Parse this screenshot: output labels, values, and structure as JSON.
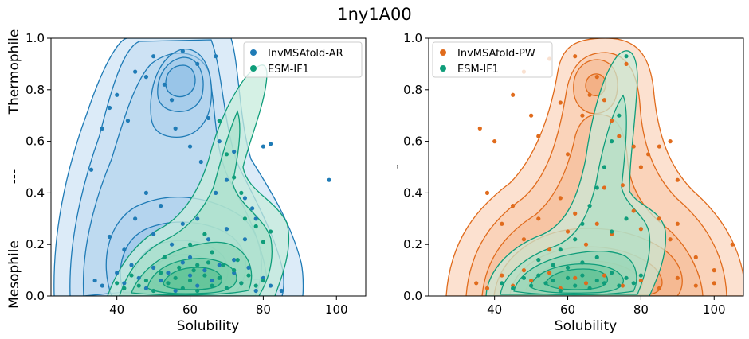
{
  "figure_title": "1ny1A00",
  "chart_data": [
    {
      "type": "scatter",
      "title": "",
      "xlabel": "Solubility",
      "ylabel_top": "Thermophile",
      "ylabel_mid": "---",
      "ylabel_bottom": "Mesophile",
      "xlim": [
        22,
        108
      ],
      "ylim": [
        0,
        1
      ],
      "xticks": [
        "40",
        "60",
        "80",
        "100"
      ],
      "yticks": [
        "0.0",
        "0.2",
        "0.4",
        "0.6",
        "0.8",
        "1.0"
      ],
      "legend_position": "top-right",
      "series": [
        {
          "name": "InvMSAfold-AR",
          "color": "#1f7bb6",
          "fill": "#cfe4f5",
          "points": [
            [
              33,
              0.49
            ],
            [
              36,
              0.65
            ],
            [
              38,
              0.73
            ],
            [
              40,
              0.78
            ],
            [
              43,
              0.68
            ],
            [
              45,
              0.87
            ],
            [
              48,
              0.85
            ],
            [
              50,
              0.93
            ],
            [
              53,
              0.82
            ],
            [
              55,
              0.76
            ],
            [
              56,
              0.65
            ],
            [
              58,
              0.95
            ],
            [
              60,
              0.58
            ],
            [
              62,
              0.9
            ],
            [
              63,
              0.52
            ],
            [
              65,
              0.69
            ],
            [
              67,
              0.93
            ],
            [
              68,
              0.6
            ],
            [
              70,
              0.45
            ],
            [
              72,
              0.56
            ],
            [
              75,
              0.38
            ],
            [
              78,
              0.3
            ],
            [
              80,
              0.58
            ],
            [
              82,
              0.59
            ],
            [
              98,
              0.45
            ],
            [
              38,
              0.23
            ],
            [
              42,
              0.18
            ],
            [
              45,
              0.3
            ],
            [
              48,
              0.4
            ],
            [
              50,
              0.24
            ],
            [
              52,
              0.35
            ],
            [
              55,
              0.2
            ],
            [
              58,
              0.28
            ],
            [
              60,
              0.15
            ],
            [
              62,
              0.3
            ],
            [
              65,
              0.22
            ],
            [
              67,
              0.4
            ],
            [
              70,
              0.26
            ],
            [
              72,
              0.14
            ],
            [
              75,
              0.22
            ],
            [
              77,
              0.34
            ],
            [
              34,
              0.06
            ],
            [
              36,
              0.04
            ],
            [
              40,
              0.09
            ],
            [
              42,
              0.05
            ],
            [
              44,
              0.12
            ],
            [
              46,
              0.07
            ],
            [
              48,
              0.03
            ],
            [
              50,
              0.11
            ],
            [
              52,
              0.06
            ],
            [
              54,
              0.09
            ],
            [
              56,
              0.02
            ],
            [
              58,
              0.13
            ],
            [
              60,
              0.08
            ],
            [
              62,
              0.04
            ],
            [
              64,
              0.1
            ],
            [
              66,
              0.06
            ],
            [
              68,
              0.12
            ],
            [
              70,
              0.03
            ],
            [
              72,
              0.09
            ],
            [
              74,
              0.05
            ],
            [
              76,
              0.11
            ],
            [
              78,
              0.02
            ],
            [
              80,
              0.07
            ],
            [
              82,
              0.04
            ],
            [
              85,
              0.02
            ]
          ]
        },
        {
          "name": "ESM-IF1",
          "color": "#0f9d7a",
          "fill": "#c7ecdc",
          "points": [
            [
              68,
              0.68
            ],
            [
              70,
              0.55
            ],
            [
              72,
              0.46
            ],
            [
              74,
              0.4
            ],
            [
              75,
              0.3
            ],
            [
              78,
              0.27
            ],
            [
              80,
              0.21
            ],
            [
              82,
              0.25
            ],
            [
              64,
              0.24
            ],
            [
              66,
              0.17
            ],
            [
              60,
              0.2
            ],
            [
              62,
              0.12
            ],
            [
              40,
              0.05
            ],
            [
              42,
              0.03
            ],
            [
              44,
              0.08
            ],
            [
              46,
              0.04
            ],
            [
              48,
              0.06
            ],
            [
              50,
              0.02
            ],
            [
              52,
              0.09
            ],
            [
              54,
              0.05
            ],
            [
              56,
              0.07
            ],
            [
              58,
              0.03
            ],
            [
              60,
              0.06
            ],
            [
              62,
              0.02
            ],
            [
              64,
              0.08
            ],
            [
              66,
              0.04
            ],
            [
              68,
              0.07
            ],
            [
              70,
              0.03
            ],
            [
              72,
              0.1
            ],
            [
              74,
              0.05
            ],
            [
              76,
              0.08
            ],
            [
              78,
              0.04
            ],
            [
              80,
              0.06
            ],
            [
              53,
              0.15
            ],
            [
              57,
              0.11
            ],
            [
              61,
              0.1
            ],
            [
              65,
              0.13
            ],
            [
              69,
              0.12
            ],
            [
              73,
              0.14
            ]
          ]
        }
      ]
    },
    {
      "type": "scatter",
      "title": "",
      "xlabel": "Solubility",
      "ylabel_mid": "---",
      "xlim": [
        22,
        108
      ],
      "ylim": [
        0,
        1
      ],
      "xticks": [
        "40",
        "60",
        "80",
        "100"
      ],
      "yticks": [
        "0.0",
        "0.2",
        "0.4",
        "0.6",
        "0.8",
        "1.0"
      ],
      "legend_position": "top-left",
      "series": [
        {
          "name": "InvMSAfold-PW",
          "color": "#e06b1c",
          "fill": "#fbdcc8",
          "points": [
            [
              36,
              0.65
            ],
            [
              40,
              0.6
            ],
            [
              45,
              0.78
            ],
            [
              48,
              0.87
            ],
            [
              50,
              0.7
            ],
            [
              52,
              0.62
            ],
            [
              55,
              0.92
            ],
            [
              58,
              0.75
            ],
            [
              60,
              0.55
            ],
            [
              62,
              0.93
            ],
            [
              64,
              0.7
            ],
            [
              66,
              0.78
            ],
            [
              68,
              0.85
            ],
            [
              70,
              0.76
            ],
            [
              72,
              0.68
            ],
            [
              74,
              0.62
            ],
            [
              76,
              0.9
            ],
            [
              78,
              0.58
            ],
            [
              80,
              0.5
            ],
            [
              82,
              0.55
            ],
            [
              85,
              0.58
            ],
            [
              88,
              0.6
            ],
            [
              90,
              0.45
            ],
            [
              38,
              0.4
            ],
            [
              42,
              0.28
            ],
            [
              45,
              0.35
            ],
            [
              48,
              0.22
            ],
            [
              52,
              0.3
            ],
            [
              55,
              0.18
            ],
            [
              58,
              0.38
            ],
            [
              60,
              0.25
            ],
            [
              62,
              0.32
            ],
            [
              65,
              0.2
            ],
            [
              68,
              0.28
            ],
            [
              70,
              0.42
            ],
            [
              72,
              0.24
            ],
            [
              75,
              0.43
            ],
            [
              78,
              0.33
            ],
            [
              80,
              0.26
            ],
            [
              85,
              0.3
            ],
            [
              88,
              0.22
            ],
            [
              90,
              0.28
            ],
            [
              95,
              0.15
            ],
            [
              100,
              0.1
            ],
            [
              105,
              0.2
            ],
            [
              35,
              0.05
            ],
            [
              38,
              0.03
            ],
            [
              42,
              0.08
            ],
            [
              45,
              0.04
            ],
            [
              48,
              0.1
            ],
            [
              50,
              0.06
            ],
            [
              55,
              0.09
            ],
            [
              58,
              0.03
            ],
            [
              62,
              0.07
            ],
            [
              65,
              0.05
            ],
            [
              70,
              0.08
            ],
            [
              75,
              0.04
            ],
            [
              80,
              0.06
            ],
            [
              85,
              0.03
            ],
            [
              90,
              0.07
            ],
            [
              95,
              0.04
            ],
            [
              100,
              0.05
            ]
          ]
        },
        {
          "name": "ESM-IF1",
          "color": "#0f9d7a",
          "fill": "#c7ecdc",
          "points": [
            [
              76,
              0.93
            ],
            [
              74,
              0.7
            ],
            [
              72,
              0.6
            ],
            [
              70,
              0.5
            ],
            [
              68,
              0.42
            ],
            [
              66,
              0.35
            ],
            [
              64,
              0.28
            ],
            [
              62,
              0.22
            ],
            [
              58,
              0.18
            ],
            [
              72,
              0.25
            ],
            [
              76,
              0.3
            ],
            [
              42,
              0.05
            ],
            [
              45,
              0.03
            ],
            [
              48,
              0.07
            ],
            [
              50,
              0.04
            ],
            [
              52,
              0.08
            ],
            [
              54,
              0.05
            ],
            [
              56,
              0.06
            ],
            [
              58,
              0.02
            ],
            [
              60,
              0.07
            ],
            [
              62,
              0.04
            ],
            [
              64,
              0.08
            ],
            [
              66,
              0.03
            ],
            [
              68,
              0.06
            ],
            [
              70,
              0.05
            ],
            [
              72,
              0.09
            ],
            [
              74,
              0.04
            ],
            [
              76,
              0.07
            ],
            [
              78,
              0.05
            ],
            [
              80,
              0.08
            ],
            [
              52,
              0.14
            ],
            [
              56,
              0.12
            ],
            [
              60,
              0.11
            ],
            [
              64,
              0.13
            ],
            [
              68,
              0.15
            ]
          ]
        }
      ]
    }
  ]
}
